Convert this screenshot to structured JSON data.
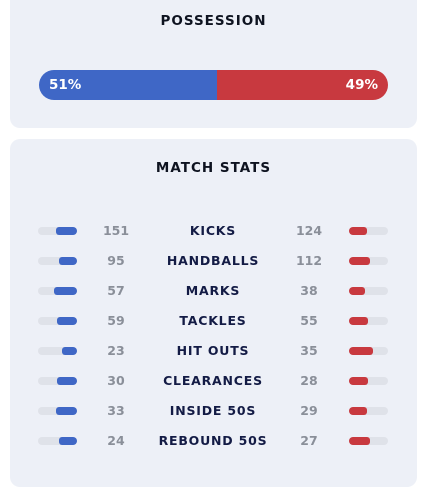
{
  "possession": {
    "title": "POSSESSION",
    "home_label": "51%",
    "away_label": "49%",
    "home_share": 0.51,
    "home_color": "#3f67c6",
    "away_color": "#c8393f"
  },
  "match_stats": {
    "title": "MATCH STATS",
    "rows": [
      {
        "label": "KICKS",
        "home": "151",
        "away": "124"
      },
      {
        "label": "HANDBALLS",
        "home": "95",
        "away": "112"
      },
      {
        "label": "MARKS",
        "home": "57",
        "away": "38"
      },
      {
        "label": "TACKLES",
        "home": "59",
        "away": "55"
      },
      {
        "label": "HIT OUTS",
        "home": "23",
        "away": "35"
      },
      {
        "label": "CLEARANCES",
        "home": "30",
        "away": "28"
      },
      {
        "label": "INSIDE 50S",
        "home": "33",
        "away": "29"
      },
      {
        "label": "REBOUND 50S",
        "home": "24",
        "away": "27"
      }
    ]
  }
}
